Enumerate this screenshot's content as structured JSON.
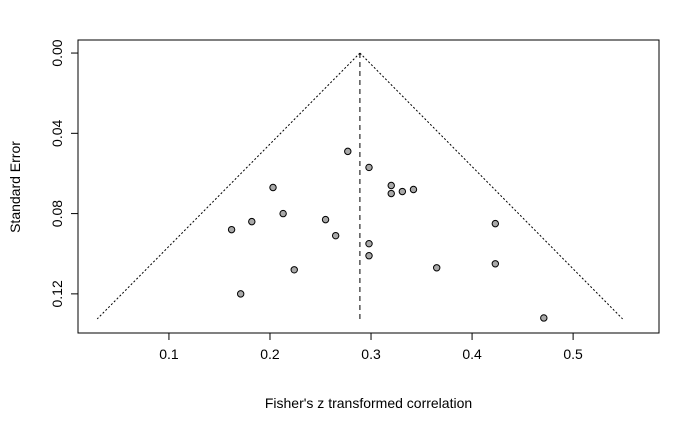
{
  "chart_data": {
    "type": "scatter",
    "subtype": "funnel-plot",
    "title": "",
    "xlabel": "Fisher's z transformed correlation",
    "ylabel": "Standard Error",
    "xlim": [
      0.01,
      0.585
    ],
    "ylim": [
      0.1395,
      -0.0065
    ],
    "y_reversed": true,
    "x_ticks": [
      0.1,
      0.2,
      0.3,
      0.4,
      0.5
    ],
    "x_tick_labels": [
      "0.1",
      "0.2",
      "0.3",
      "0.4",
      "0.5"
    ],
    "y_ticks": [
      0.0,
      0.04,
      0.08,
      0.12
    ],
    "y_tick_labels": [
      "0.00",
      "0.04",
      "0.08",
      "0.12"
    ],
    "grid": false,
    "legend": null,
    "colors": {
      "point_fill": "#a9a9a9",
      "point_stroke": "#000000",
      "line": "#000000"
    },
    "summary_estimate": 0.289,
    "funnel": {
      "apex": [
        0.289,
        0.0
      ],
      "left_base": [
        0.029,
        0.1325
      ],
      "right_base": [
        0.549,
        0.1325
      ]
    },
    "points": [
      {
        "x": 0.277,
        "y": 0.049
      },
      {
        "x": 0.298,
        "y": 0.057
      },
      {
        "x": 0.203,
        "y": 0.067
      },
      {
        "x": 0.32,
        "y": 0.066
      },
      {
        "x": 0.342,
        "y": 0.068
      },
      {
        "x": 0.32,
        "y": 0.07
      },
      {
        "x": 0.331,
        "y": 0.069
      },
      {
        "x": 0.213,
        "y": 0.08
      },
      {
        "x": 0.255,
        "y": 0.083
      },
      {
        "x": 0.182,
        "y": 0.084
      },
      {
        "x": 0.162,
        "y": 0.088
      },
      {
        "x": 0.265,
        "y": 0.091
      },
      {
        "x": 0.298,
        "y": 0.095
      },
      {
        "x": 0.298,
        "y": 0.101
      },
      {
        "x": 0.423,
        "y": 0.085
      },
      {
        "x": 0.423,
        "y": 0.105
      },
      {
        "x": 0.365,
        "y": 0.107
      },
      {
        "x": 0.224,
        "y": 0.108
      },
      {
        "x": 0.171,
        "y": 0.12
      },
      {
        "x": 0.471,
        "y": 0.132
      }
    ]
  }
}
